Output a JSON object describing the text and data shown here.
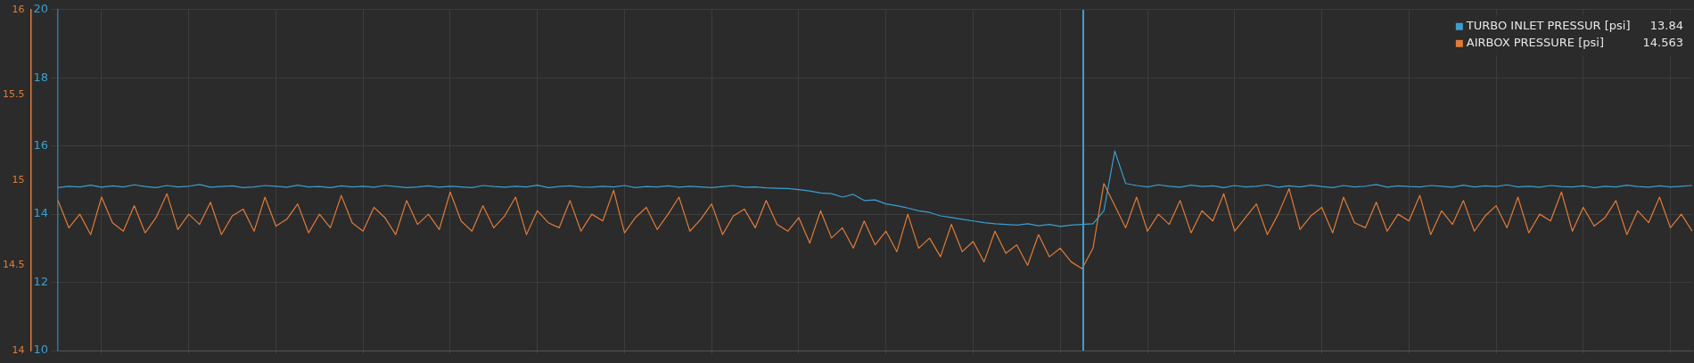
{
  "chart_data": {
    "type": "line",
    "categories": [
      null,
      null,
      null,
      null,
      null,
      null,
      null,
      null,
      null,
      null,
      null,
      null,
      null,
      null,
      null,
      null,
      null,
      null,
      null,
      null,
      null,
      null,
      null,
      null,
      null,
      null,
      null,
      null,
      null,
      null,
      null,
      null,
      null,
      null,
      null,
      null,
      null,
      null,
      null,
      null,
      null,
      null,
      null,
      null,
      null,
      null,
      null,
      null,
      null,
      null,
      null,
      null,
      null,
      null,
      null,
      null,
      null,
      null,
      null,
      null,
      null,
      null,
      null,
      null,
      null,
      null,
      null,
      null,
      null,
      null,
      null,
      null,
      null,
      null,
      null,
      null,
      null,
      null,
      null,
      null,
      null,
      null,
      null,
      null,
      null,
      null,
      null,
      null,
      null,
      null,
      null,
      null,
      null,
      null,
      null,
      null,
      null,
      null,
      null,
      null,
      null,
      null,
      null,
      null,
      null,
      null,
      null,
      null,
      null,
      null,
      null,
      null,
      null,
      null,
      null,
      null,
      null,
      null,
      null,
      null,
      null,
      null,
      null,
      null,
      null,
      null,
      null,
      null,
      null,
      null,
      null,
      null,
      null,
      null,
      null,
      null,
      null,
      null,
      null,
      null,
      null,
      null,
      null,
      null,
      null,
      null,
      null,
      null,
      null,
      null,
      null
    ],
    "series": [
      {
        "name": "TURBO INLET PRESSUR [psi]",
        "color": "#3a9fd0",
        "values": [
          14.78,
          14.82,
          14.8,
          14.85,
          14.79,
          14.83,
          14.8,
          14.86,
          14.81,
          14.78,
          14.84,
          14.8,
          14.82,
          14.87,
          14.79,
          14.81,
          14.83,
          14.78,
          14.8,
          14.84,
          14.82,
          14.79,
          14.85,
          14.8,
          14.81,
          14.78,
          14.83,
          14.8,
          14.82,
          14.79,
          14.84,
          14.81,
          14.78,
          14.8,
          14.83,
          14.79,
          14.82,
          14.8,
          14.78,
          14.84,
          14.81,
          14.79,
          14.82,
          14.8,
          14.85,
          14.78,
          14.81,
          14.83,
          14.8,
          14.79,
          14.82,
          14.8,
          14.84,
          14.78,
          14.81,
          14.8,
          14.83,
          14.79,
          14.82,
          14.8,
          14.78,
          14.81,
          14.84,
          14.79,
          14.8,
          14.77,
          14.76,
          14.75,
          14.72,
          14.68,
          14.62,
          14.6,
          14.5,
          14.58,
          14.4,
          14.42,
          14.3,
          14.25,
          14.18,
          14.1,
          14.05,
          13.95,
          13.9,
          13.85,
          13.8,
          13.75,
          13.72,
          13.7,
          13.68,
          13.72,
          13.66,
          13.7,
          13.64,
          13.68,
          13.7,
          13.72,
          14.1,
          15.85,
          14.9,
          14.84,
          14.8,
          14.86,
          14.82,
          14.79,
          14.85,
          14.81,
          14.83,
          14.78,
          14.84,
          14.8,
          14.82,
          14.86,
          14.79,
          14.83,
          14.8,
          14.85,
          14.81,
          14.78,
          14.84,
          14.8,
          14.82,
          14.87,
          14.79,
          14.83,
          14.81,
          14.8,
          14.84,
          14.82,
          14.79,
          14.85,
          14.8,
          14.83,
          14.81,
          14.86,
          14.8,
          14.82,
          14.79,
          14.84,
          14.81,
          14.8,
          14.83,
          14.78,
          14.82,
          14.8,
          14.85,
          14.81,
          14.79,
          14.83,
          14.8,
          14.82,
          14.84
        ]
      },
      {
        "name": "AIRBOX PRESSURE [psi]",
        "color": "#e07b39",
        "axis": "y2",
        "values": [
          14.88,
          14.72,
          14.8,
          14.68,
          14.9,
          14.75,
          14.7,
          14.85,
          14.69,
          14.78,
          14.92,
          14.71,
          14.8,
          14.74,
          14.87,
          14.68,
          14.79,
          14.83,
          14.7,
          14.9,
          14.73,
          14.77,
          14.86,
          14.69,
          14.8,
          14.72,
          14.91,
          14.75,
          14.7,
          14.84,
          14.78,
          14.68,
          14.88,
          14.74,
          14.8,
          14.71,
          14.93,
          14.76,
          14.7,
          14.85,
          14.72,
          14.79,
          14.9,
          14.68,
          14.82,
          14.75,
          14.72,
          14.88,
          14.7,
          14.8,
          14.76,
          14.94,
          14.69,
          14.78,
          14.84,
          14.71,
          14.8,
          14.9,
          14.7,
          14.77,
          14.86,
          14.68,
          14.79,
          14.83,
          14.72,
          14.88,
          14.74,
          14.7,
          14.78,
          14.63,
          14.82,
          14.66,
          14.72,
          14.6,
          14.76,
          14.62,
          14.7,
          14.58,
          14.8,
          14.6,
          14.66,
          14.55,
          14.74,
          14.58,
          14.64,
          14.52,
          14.7,
          14.57,
          14.62,
          14.5,
          14.68,
          14.55,
          14.6,
          14.52,
          14.48,
          14.6,
          14.98,
          14.85,
          14.72,
          14.9,
          14.7,
          14.8,
          14.74,
          14.88,
          14.69,
          14.82,
          14.76,
          14.92,
          14.7,
          14.78,
          14.86,
          14.68,
          14.8,
          14.95,
          14.71,
          14.79,
          14.84,
          14.69,
          14.9,
          14.75,
          14.72,
          14.87,
          14.7,
          14.8,
          14.76,
          14.91,
          14.68,
          14.82,
          14.74,
          14.88,
          14.7,
          14.79,
          14.85,
          14.72,
          14.9,
          14.69,
          14.8,
          14.76,
          14.93,
          14.7,
          14.84,
          14.73,
          14.78,
          14.88,
          14.68,
          14.82,
          14.75,
          14.9,
          14.72,
          14.8,
          14.7
        ]
      }
    ],
    "ylim": [
      10,
      20
    ],
    "yticks": [
      10,
      12,
      14,
      16,
      18,
      20
    ],
    "y2lim": [
      14,
      16
    ],
    "y2ticks": [
      14,
      14.5,
      15,
      15.5,
      16
    ],
    "annotations": [
      "13.84",
      "14.563"
    ],
    "grid": true,
    "legend": "top right",
    "marker": "none",
    "line_style": "solid"
  }
}
